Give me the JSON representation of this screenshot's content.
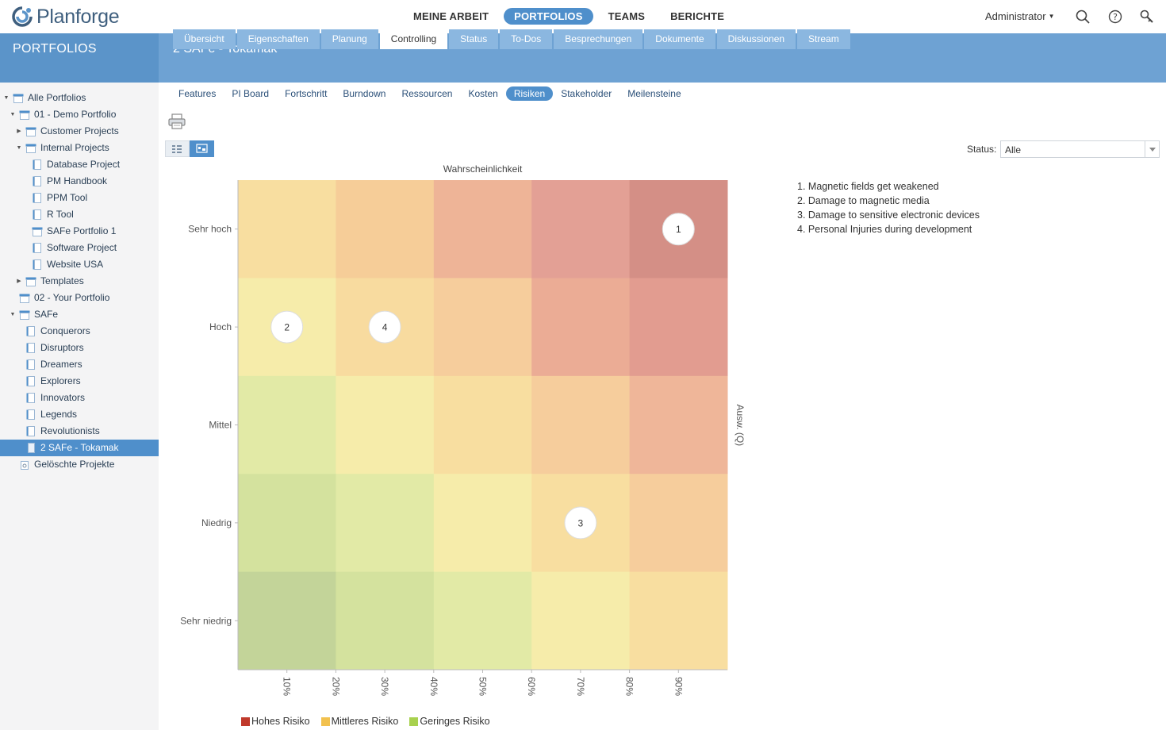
{
  "app": {
    "name": "Planforge"
  },
  "topnav": [
    {
      "label": "MEINE ARBEIT",
      "active": false
    },
    {
      "label": "PORTFOLIOS",
      "active": true
    },
    {
      "label": "TEAMS",
      "active": false
    },
    {
      "label": "BERICHTE",
      "active": false
    }
  ],
  "user": {
    "name": "Administrator"
  },
  "icons": {
    "search": "search-icon",
    "help": "help-icon",
    "admin": "key-icon"
  },
  "sidebar": {
    "title": "PORTFOLIOS",
    "items": [
      {
        "label": "Alle Portfolios",
        "level": 0,
        "arrow": "down",
        "icon": "portfolio-icon"
      },
      {
        "label": "01 - Demo Portfolio",
        "level": 1,
        "arrow": "down",
        "icon": "portfolio-icon"
      },
      {
        "label": "Customer Projects",
        "level": 2,
        "arrow": "right",
        "icon": "portfolio-icon"
      },
      {
        "label": "Internal Projects",
        "level": 2,
        "arrow": "down",
        "icon": "portfolio-icon"
      },
      {
        "label": "Database Project",
        "level": 3,
        "arrow": "",
        "icon": "project-icon"
      },
      {
        "label": "PM Handbook",
        "level": 3,
        "arrow": "",
        "icon": "project-icon"
      },
      {
        "label": "PPM Tool",
        "level": 3,
        "arrow": "",
        "icon": "project-icon"
      },
      {
        "label": "R Tool",
        "level": 3,
        "arrow": "",
        "icon": "project-icon"
      },
      {
        "label": "SAFe Portfolio 1",
        "level": 3,
        "arrow": "",
        "icon": "portfolio-icon"
      },
      {
        "label": "Software Project",
        "level": 3,
        "arrow": "",
        "icon": "project-icon"
      },
      {
        "label": "Website USA",
        "level": 3,
        "arrow": "",
        "icon": "project-icon"
      },
      {
        "label": "Templates",
        "level": 2,
        "arrow": "right",
        "icon": "portfolio-icon"
      },
      {
        "label": "02 - Your Portfolio",
        "level": 1,
        "arrow": "",
        "icon": "portfolio-icon"
      },
      {
        "label": "SAFe",
        "level": 1,
        "arrow": "down",
        "icon": "portfolio-icon"
      },
      {
        "label": "Conquerors",
        "level": 2,
        "arrow": "",
        "icon": "project-icon"
      },
      {
        "label": "Disruptors",
        "level": 2,
        "arrow": "",
        "icon": "project-icon"
      },
      {
        "label": "Dreamers",
        "level": 2,
        "arrow": "",
        "icon": "project-icon"
      },
      {
        "label": "Explorers",
        "level": 2,
        "arrow": "",
        "icon": "project-icon"
      },
      {
        "label": "Innovators",
        "level": 2,
        "arrow": "",
        "icon": "project-icon"
      },
      {
        "label": "Legends",
        "level": 2,
        "arrow": "",
        "icon": "project-icon"
      },
      {
        "label": "Revolutionists",
        "level": 2,
        "arrow": "",
        "icon": "project-icon"
      },
      {
        "label": "2 SAFe - Tokamak",
        "level": 2,
        "arrow": "",
        "icon": "project-icon",
        "selected": true
      },
      {
        "label": "Gelöschte Projekte",
        "level": 1,
        "arrow": "",
        "icon": "trash-icon"
      }
    ]
  },
  "page": {
    "title": "2 SAFe - Tokamak"
  },
  "tabs": [
    {
      "label": "Übersicht",
      "active": false
    },
    {
      "label": "Eigenschaften",
      "active": false
    },
    {
      "label": "Planung",
      "active": false
    },
    {
      "label": "Controlling",
      "active": true
    },
    {
      "label": "Status",
      "active": false
    },
    {
      "label": "To-Dos",
      "active": false
    },
    {
      "label": "Besprechungen",
      "active": false
    },
    {
      "label": "Dokumente",
      "active": false
    },
    {
      "label": "Diskussionen",
      "active": false
    },
    {
      "label": "Stream",
      "active": false
    }
  ],
  "subtabs": [
    {
      "label": "Features",
      "active": false
    },
    {
      "label": "PI Board",
      "active": false
    },
    {
      "label": "Fortschritt",
      "active": false
    },
    {
      "label": "Burndown",
      "active": false
    },
    {
      "label": "Ressourcen",
      "active": false
    },
    {
      "label": "Kosten",
      "active": false
    },
    {
      "label": "Risiken",
      "active": true
    },
    {
      "label": "Stakeholder",
      "active": false
    },
    {
      "label": "Meilensteine",
      "active": false
    }
  ],
  "toolbar": {
    "print_icon": "printer-icon",
    "view_list_icon": "list-view-icon",
    "view_chart_icon": "chart-view-icon",
    "active_view": "chart"
  },
  "status_filter": {
    "label": "Status:",
    "value": "Alle"
  },
  "chart_data": {
    "type": "heatmap",
    "title": "Wahrscheinlichkeit",
    "xlabel": "",
    "ylabel": "Ausw. (Q)",
    "x_ticks": [
      "10%",
      "20%",
      "30%",
      "40%",
      "50%",
      "60%",
      "70%",
      "80%",
      "90%"
    ],
    "x_columns": [
      10,
      30,
      50,
      70,
      90
    ],
    "y_categories": [
      "Sehr hoch",
      "Hoch",
      "Mittel",
      "Niedrig",
      "Sehr niedrig"
    ],
    "cell_colors": [
      [
        "#f8dea0",
        "#f6cd98",
        "#eeb497",
        "#e3a095",
        "#d48f86"
      ],
      [
        "#f6ecaa",
        "#f8db9f",
        "#f6cd9c",
        "#ebac95",
        "#e29c90"
      ],
      [
        "#e2eaa6",
        "#f6ecaa",
        "#f8dea0",
        "#f6cd9c",
        "#efb699"
      ],
      [
        "#d4e29e",
        "#e2eaa6",
        "#f6ecaa",
        "#f8dea0",
        "#f6cd9c"
      ],
      [
        "#c3d499",
        "#d4e29e",
        "#e2eaa6",
        "#f6ecaa",
        "#f8dea0"
      ]
    ],
    "risks": [
      {
        "id": "1",
        "x": 90,
        "y": "Sehr hoch",
        "name": "Magnetic fields get weakened"
      },
      {
        "id": "2",
        "x": 10,
        "y": "Hoch",
        "name": "Damage to magnetic media"
      },
      {
        "id": "3",
        "x": 70,
        "y": "Niedrig",
        "name": "Damage to sensitive electronic devices"
      },
      {
        "id": "4",
        "x": 30,
        "y": "Hoch",
        "name": "Personal Injuries during development"
      }
    ],
    "legend": [
      {
        "label": "Hohes Risiko",
        "color": "#c0392b"
      },
      {
        "label": "Mittleres Risiko",
        "color": "#f2c14e"
      },
      {
        "label": "Geringes Risiko",
        "color": "#a8d14f"
      }
    ]
  }
}
